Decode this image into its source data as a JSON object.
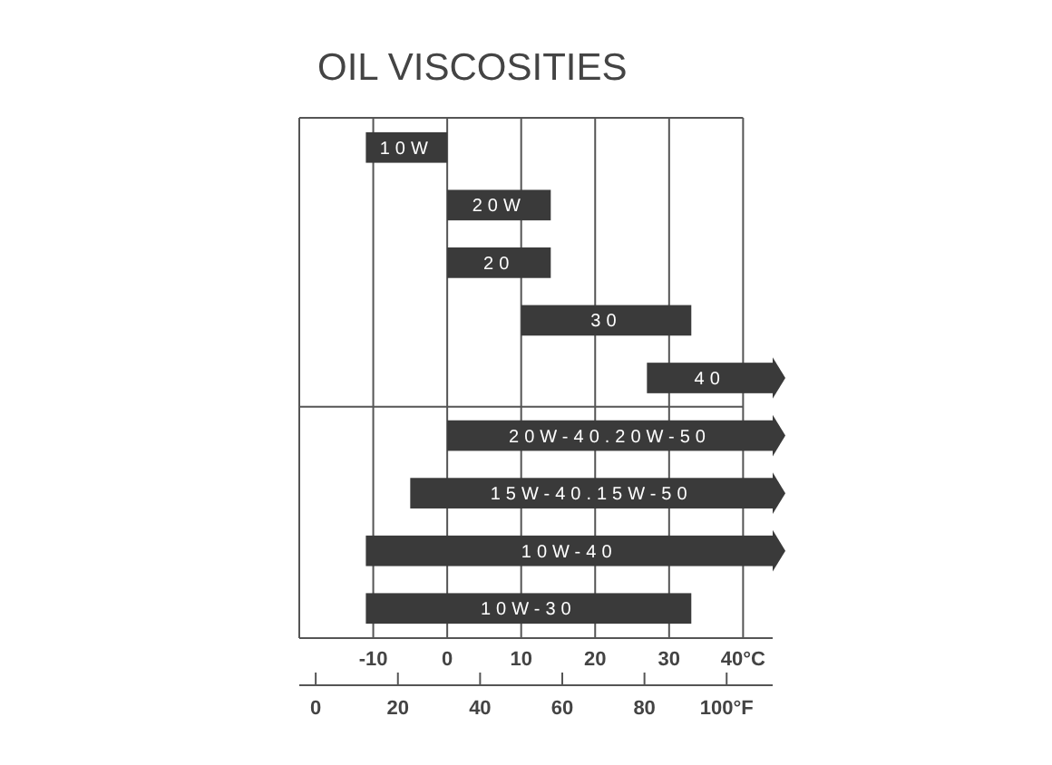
{
  "chart_data": {
    "type": "bar",
    "orientation": "horizontal",
    "title": "OIL VISCOSITIES",
    "categories": [
      "10W",
      "20W",
      "20",
      "30",
      "40",
      "20W-40.20W-50",
      "15W-40.15W-50",
      "10W-40",
      "10W-30"
    ],
    "base": [
      -11,
      0,
      0,
      10,
      27,
      0,
      -5,
      -11,
      -11
    ],
    "values": [
      11,
      14,
      14,
      23,
      17,
      44,
      49,
      55,
      44
    ],
    "color": "#3a3a3a",
    "xlim": [
      -20,
      44
    ],
    "xticks": [
      -10,
      0,
      10,
      20,
      30,
      {
        "value": 40,
        "label": "40°C"
      }
    ],
    "x2lim": [
      -4,
      111.2
    ],
    "x2ticks": [
      0,
      20,
      40,
      60,
      80,
      {
        "value": 100,
        "label": "100°F"
      }
    ],
    "grid": "x"
  }
}
